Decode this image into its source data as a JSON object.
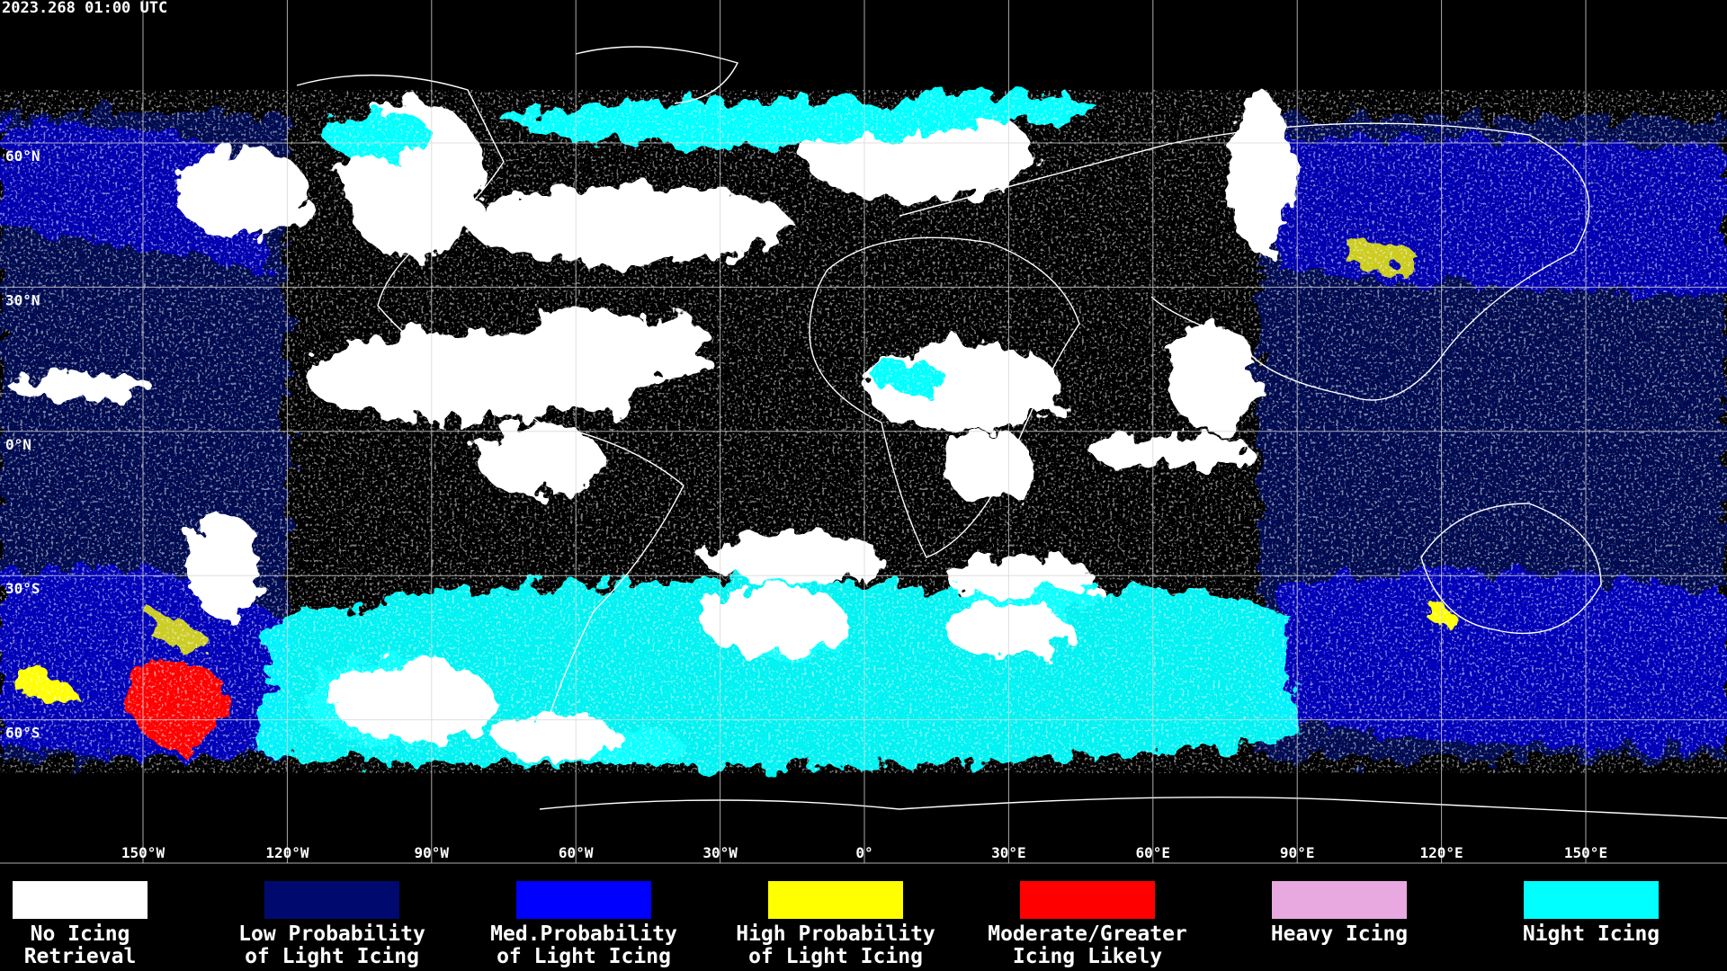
{
  "header": {
    "timestamp": "2023.268 01:00 UTC"
  },
  "map": {
    "latitude_labels": [
      "60°N",
      "30°N",
      "0°N",
      "30°S",
      "60°S"
    ],
    "longitude_labels": [
      "150°W",
      "120°W",
      "90°W",
      "60°W",
      "30°W",
      "0°",
      "30°E",
      "60°E",
      "90°E",
      "120°E",
      "150°E"
    ]
  },
  "legend": [
    {
      "lines": [
        "No Icing",
        "Retrieval"
      ],
      "color": "#ffffff"
    },
    {
      "lines": [
        "Low Probability",
        "of Light Icing"
      ],
      "color": "#000a6e"
    },
    {
      "lines": [
        "Med.Probability",
        "of Light Icing"
      ],
      "color": "#0000ff"
    },
    {
      "lines": [
        "High Probability",
        "of Light Icing"
      ],
      "color": "#ffff00"
    },
    {
      "lines": [
        "Moderate/Greater",
        "Icing Likely"
      ],
      "color": "#ff0000"
    },
    {
      "lines": [
        "Heavy Icing"
      ],
      "color": "#e8a8e0"
    },
    {
      "lines": [
        "Night Icing"
      ],
      "color": "#00ffff"
    }
  ]
}
